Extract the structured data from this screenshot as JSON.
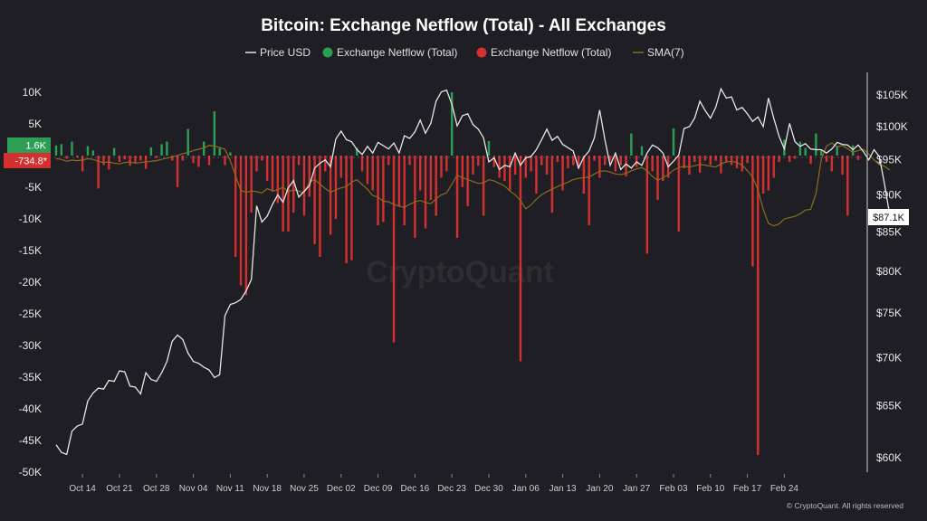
{
  "chart_data": {
    "type": "bar",
    "title": "Bitcoin: Exchange Netflow (Total) - All Exchanges",
    "legend": [
      {
        "label": "Price USD",
        "kind": "line",
        "color": "#e6e6e6"
      },
      {
        "label": "Exchange Netflow (Total)",
        "kind": "dot",
        "color": "#2e9e55"
      },
      {
        "label": "Exchange Netflow (Total)",
        "kind": "dot",
        "color": "#d3302f"
      },
      {
        "label": "SMA(7)",
        "kind": "line",
        "color": "#8a6d1f"
      }
    ],
    "legend_position": "top-center",
    "x_labels": [
      "Oct 14",
      "Oct 21",
      "Oct 28",
      "Nov 04",
      "Nov 11",
      "Nov 18",
      "Nov 25",
      "Dec 02",
      "Dec 09",
      "Dec 16",
      "Dec 23",
      "Dec 30",
      "Jan 06",
      "Jan 13",
      "Jan 20",
      "Jan 27",
      "Feb 03",
      "Feb 10",
      "Feb 17",
      "Feb 24"
    ],
    "first_date": "Oct 9",
    "left_axis": {
      "ticks": [
        10000,
        5000,
        0,
        -5000,
        -10000,
        -15000,
        -20000,
        -25000,
        -30000,
        -35000,
        -40000,
        -45000,
        -50000
      ],
      "tick_labels": [
        "10K",
        "5K",
        "0",
        "-5K",
        "-10K",
        "-15K",
        "-20K",
        "-25K",
        "-30K",
        "-35K",
        "-40K",
        "-45K",
        "-50K"
      ],
      "range": [
        -50000,
        10000
      ]
    },
    "right_axis": {
      "tick_labels": [
        "$105K",
        "$100K",
        "$95K",
        "$90K",
        "$85K",
        "$80K",
        "$75K",
        "$70K",
        "$65K",
        "$60K"
      ],
      "ticks": [
        105000,
        100000,
        95000,
        90000,
        85000,
        80000,
        75000,
        70000,
        65000,
        60000
      ],
      "scale": "log",
      "range": [
        59000,
        108000
      ]
    },
    "grid": false,
    "netflow": [
      1.6,
      1.8,
      -0.5,
      2.2,
      -0.3,
      -2.5,
      1.5,
      0.8,
      -5.2,
      -1.5,
      -2.2,
      1.2,
      -1.0,
      -0.6,
      -1.6,
      -1.2,
      -0.8,
      -2.1,
      1.3,
      -0.4,
      1.8,
      2.2,
      -0.8,
      -5,
      -0.8,
      4.2,
      -1.2,
      -1.8,
      2.2,
      -1.5,
      7,
      1.2,
      -1.5,
      0.5,
      -16,
      -20.5,
      -22,
      -9,
      -2.5,
      -0.8,
      -4,
      -5.5,
      -7.5,
      -12,
      -12,
      -9,
      -1.5,
      -9.5,
      -6.5,
      -14,
      -16,
      -2.5,
      -12.5,
      -10,
      -3.5,
      -17,
      -16.5,
      1.2,
      -2.5,
      -4.5,
      -5.5,
      -11,
      -10.5,
      -1.5,
      -29.5,
      -8,
      -11,
      -1.5,
      -13,
      -5.5,
      -11.5,
      -7,
      -9.5,
      -3.5,
      -2.5,
      10,
      -13,
      -5,
      -8,
      -3,
      -1.6,
      -9.5,
      2.3,
      -1.8,
      -3.5,
      -4,
      -5.5,
      -3,
      -32.5,
      -3.5,
      -2.5,
      -6,
      -1.5,
      -3,
      -9,
      -1,
      -5.5,
      -2,
      -1.5,
      -2,
      -6,
      -11,
      -0.8,
      -3.5,
      -1.5,
      -0.8,
      -2.5,
      -1.5,
      -3.3,
      3.5,
      -1.8,
      1.5,
      -15.5,
      -2.5,
      -7,
      -4,
      -3.5,
      4.3,
      -12,
      -2,
      -3,
      -1,
      -2.7,
      -0.8,
      -1.5,
      -0.8,
      -2.8,
      -1,
      -1.5,
      -2,
      -2.5,
      -1.2,
      -17.5,
      -47.3,
      -6,
      -5.5,
      -3.5,
      -1,
      2.5,
      -1,
      -0.5,
      2.2,
      1.2,
      -1.3,
      3.5,
      0.8,
      -1,
      -2.5,
      1.5,
      -3,
      -9.5,
      1.6,
      -0.7
    ],
    "price": [
      61200,
      60500,
      60300,
      62500,
      63000,
      63200,
      65500,
      66300,
      66800,
      66700,
      67600,
      67500,
      68600,
      68500,
      67000,
      66900,
      66200,
      68400,
      67700,
      67500,
      68400,
      69600,
      71800,
      72500,
      72000,
      70500,
      69600,
      69400,
      69000,
      68700,
      67900,
      68200,
      74700,
      76000,
      76200,
      76600,
      77600,
      79000,
      88500,
      86300,
      87100,
      88700,
      90000,
      89000,
      91000,
      92000,
      89700,
      90500,
      91300,
      93800,
      94500,
      95000,
      94000,
      98100,
      99300,
      98000,
      97700,
      96500,
      95800,
      97000,
      96000,
      97600,
      97100,
      96600,
      97500,
      96000,
      98600,
      98200,
      99200,
      101000,
      99000,
      100500,
      104000,
      105500,
      105800,
      103500,
      100100,
      101700,
      102000,
      100300,
      99600,
      98300,
      94700,
      95300,
      93600,
      94200,
      94000,
      96000,
      94200,
      95300,
      95500,
      96500,
      98000,
      99600,
      97900,
      98500,
      97300,
      96800,
      96300,
      93800,
      95400,
      96300,
      98300,
      102600,
      98000,
      94200,
      96000,
      93600,
      94400,
      93800,
      94700,
      94200,
      96000,
      97200,
      96800,
      96000,
      94000,
      94800,
      95700,
      99700,
      100000,
      101300,
      104000,
      102500,
      101300,
      103000,
      106000,
      104500,
      104700,
      102600,
      103000,
      102000,
      100800,
      101500,
      100000,
      104500,
      101300,
      98500,
      96600,
      100500,
      97700,
      97000,
      97400,
      96600,
      96500,
      96500,
      96000,
      96600,
      97600,
      97300,
      97200,
      96500,
      97200,
      96200,
      95000,
      96500,
      95500,
      91500,
      87100
    ],
    "sma": [
      -0.5,
      -0.6,
      -0.9,
      -0.7,
      -0.8,
      -0.7,
      -0.5,
      -0.6,
      -0.9,
      -1.1,
      -1.0,
      -1.2,
      -1.3,
      -1.1,
      -1.0,
      -1.2,
      -1.1,
      -1.0,
      -0.9,
      -0.8,
      -0.6,
      -0.4,
      -0.2,
      0.0,
      0.3,
      0.5,
      0.8,
      1.0,
      1.2,
      1.6,
      1.5,
      1.3,
      1.0,
      -0.8,
      -3.2,
      -5.5,
      -5.8,
      -5.6,
      -5.7,
      -5.9,
      -5.2,
      -5.6,
      -5.4,
      -5.0,
      -5.7,
      -5.4,
      -5.6,
      -5.9,
      -4.2,
      -3.8,
      -4.5,
      -5.2,
      -5.8,
      -5.4,
      -5.1,
      -4.9,
      -4.2,
      -3.8,
      -4.6,
      -5.3,
      -6.3,
      -6.6,
      -7.2,
      -7.3,
      -7.7,
      -8.0,
      -8.2,
      -7.7,
      -7.3,
      -7.1,
      -7.4,
      -7.6,
      -6.8,
      -6.2,
      -5.9,
      -4.5,
      -3.1,
      -3.5,
      -3.8,
      -4.1,
      -4.4,
      -4.3,
      -3.8,
      -4.0,
      -4.4,
      -4.8,
      -5.6,
      -6.2,
      -7.1,
      -8.4,
      -7.8,
      -6.9,
      -6.2,
      -5.7,
      -5.3,
      -4.9,
      -4.5,
      -4.2,
      -3.8,
      -3.6,
      -3.5,
      -3.4,
      -2.9,
      -2.5,
      -2.4,
      -2.6,
      -2.9,
      -3.0,
      -2.8,
      -2.4,
      -2.1,
      -1.9,
      -2.4,
      -3.3,
      -3.9,
      -3.5,
      -3.0,
      -2.3,
      -1.9,
      -1.7,
      -1.8,
      -1.6,
      -1.4,
      -1.5,
      -1.7,
      -1.8,
      -1.3,
      -1.0,
      -0.9,
      -1.1,
      -1.5,
      -2.4,
      -3.4,
      -5.4,
      -8.5,
      -10.7,
      -11.1,
      -10.8,
      -10.0,
      -9.8,
      -9.6,
      -9.2,
      -8.6,
      -8.5,
      -6.0,
      -0.6,
      1.5,
      2.0,
      1.4,
      1.6,
      1.1,
      0.5,
      0.8,
      1.0,
      0.2,
      -0.7,
      -1.4,
      -1.7,
      -2.3
    ]
  },
  "badges": {
    "last_positive": "1.6K",
    "last_negative": "-734.8*",
    "last_price": "$87.1K"
  },
  "watermark": "CryptoQuant",
  "credit": "© CryptoQuant. All rights reserved",
  "colors": {
    "green": "#2e9e55",
    "red": "#d3302f",
    "price": "#e6e6e6",
    "sma": "#8a6d1f",
    "axis": "#e6e6e6"
  }
}
